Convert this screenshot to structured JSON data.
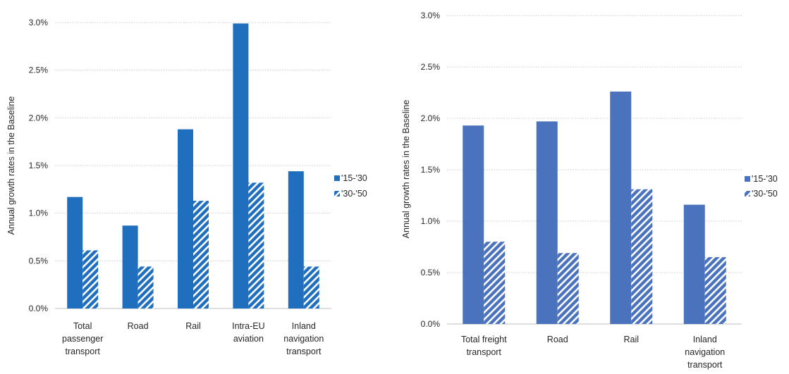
{
  "colors": {
    "passenger_solid": "#1f6fbe",
    "freight_solid": "#4a72bd",
    "hatch_light": "#ffffff",
    "grid": "#c8c8c8",
    "text": "#262626"
  },
  "chart_data": [
    {
      "type": "bar",
      "ylabel": "Annual growth rates in the Baseline",
      "ylim": [
        0,
        3.0
      ],
      "ytick_labels": [
        "0.0%",
        "0.5%",
        "1.0%",
        "1.5%",
        "2.0%",
        "2.5%",
        "3.0%"
      ],
      "grid": true,
      "legend_position": "right",
      "categories": [
        [
          "Total",
          "passenger",
          "transport"
        ],
        [
          "Road"
        ],
        [
          "Rail"
        ],
        [
          "Intra-EU",
          "aviation"
        ],
        [
          "Inland",
          "navigation",
          "transport"
        ]
      ],
      "series": [
        {
          "name": "'15-'30",
          "pattern": "solid",
          "values": [
            1.17,
            0.87,
            1.88,
            2.99,
            1.44
          ]
        },
        {
          "name": "'30-'50",
          "pattern": "hatched",
          "values": [
            0.61,
            0.44,
            1.13,
            1.32,
            0.44
          ]
        }
      ]
    },
    {
      "type": "bar",
      "ylabel": "Annual growth rates in the Baseline",
      "ylim": [
        0,
        3.0
      ],
      "ytick_labels": [
        "0.0%",
        "0.5%",
        "1.0%",
        "1.5%",
        "2.0%",
        "2.5%",
        "3.0%"
      ],
      "grid": true,
      "legend_position": "right",
      "categories": [
        [
          "Total freight",
          "transport"
        ],
        [
          "Road"
        ],
        [
          "Rail"
        ],
        [
          "Inland",
          "navigation",
          "transport"
        ]
      ],
      "series": [
        {
          "name": "'15-'30",
          "pattern": "solid",
          "values": [
            1.93,
            1.97,
            2.26,
            1.16
          ]
        },
        {
          "name": "'30-'50",
          "pattern": "hatched",
          "values": [
            0.8,
            0.69,
            1.31,
            0.65
          ]
        }
      ]
    }
  ]
}
